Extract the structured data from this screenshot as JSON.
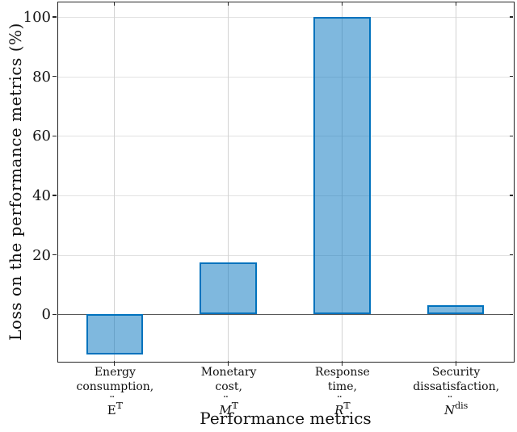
{
  "chart_data": {
    "type": "bar",
    "title": "",
    "xlabel": "Performance metrics",
    "ylabel": "Loss on the performance metrics (%)",
    "ylim": [
      -15.5,
      105
    ],
    "yticks": [
      0,
      20,
      40,
      60,
      80,
      100
    ],
    "grid": true,
    "legend": null,
    "categories": [
      {
        "id": "energy-consumption",
        "lines": [
          "Energy",
          "consumption,"
        ],
        "symbol": {
          "base": "E",
          "italic": false,
          "dots": "¨",
          "sub": "𝕋",
          "sub_italic": false
        }
      },
      {
        "id": "monetary-cost",
        "lines": [
          "Monetary",
          "cost,"
        ],
        "symbol": {
          "base": "M",
          "italic": true,
          "dots": "¨",
          "sub": "𝕋",
          "sub_italic": false
        }
      },
      {
        "id": "response-time",
        "lines": [
          "Response",
          "time,"
        ],
        "symbol": {
          "base": "R",
          "italic": true,
          "dots": "¨",
          "sub": "𝕋",
          "sub_italic": false
        }
      },
      {
        "id": "security-dissatisfaction",
        "lines": [
          "Security",
          "dissatisfaction,"
        ],
        "symbol": {
          "base": "N",
          "italic": true,
          "dots": "¨",
          "sub": "dis",
          "sub_italic": false
        }
      }
    ],
    "values": [
      -13.5,
      17.5,
      100,
      3
    ],
    "bar_style": {
      "fill": "rgba(0,114,189,0.5)",
      "fill_hex": "#7FB8DE",
      "edge": "#0072BD",
      "width_fraction": 0.5
    },
    "colors": {
      "grid_h": "#e2e2e2",
      "grid_v": "#d2d2d2",
      "zero_line": "#595959",
      "spine": "#262626",
      "text": "#111111"
    }
  }
}
